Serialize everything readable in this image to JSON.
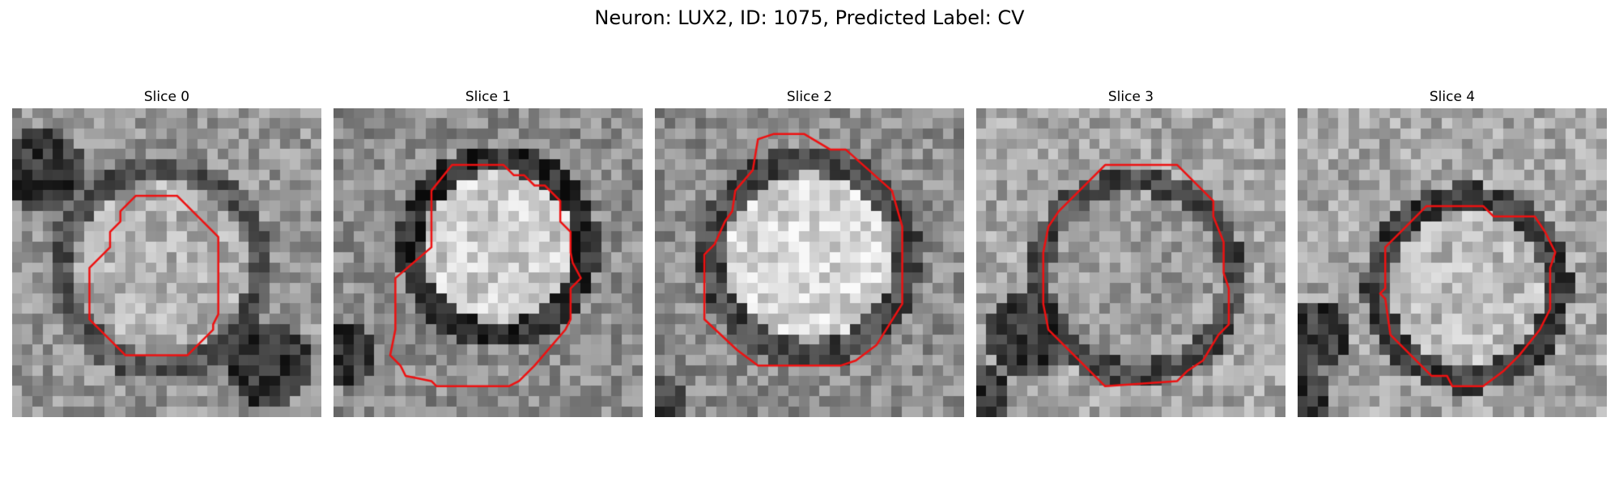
{
  "figure": {
    "title": "Neuron: LUX2, ID: 1075, Predicted Label: CV",
    "contour_color": "#ee1111"
  },
  "panels": [
    {
      "title": "Slice 0"
    },
    {
      "title": "Slice 1"
    },
    {
      "title": "Slice 2"
    },
    {
      "title": "Slice 3"
    },
    {
      "title": "Slice 4"
    }
  ]
}
